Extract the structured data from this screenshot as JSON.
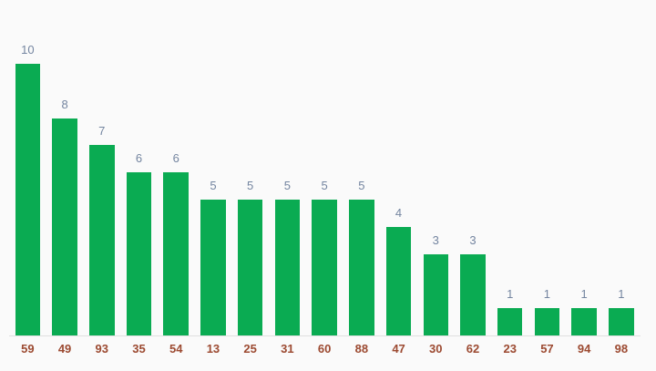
{
  "chart_data": {
    "type": "bar",
    "title": "",
    "xlabel": "",
    "ylabel": "",
    "categories": [
      "59",
      "49",
      "93",
      "35",
      "54",
      "13",
      "25",
      "31",
      "60",
      "88",
      "47",
      "30",
      "62",
      "23",
      "57",
      "94",
      "98"
    ],
    "values": [
      10,
      8,
      7,
      6,
      6,
      5,
      5,
      5,
      5,
      5,
      4,
      3,
      3,
      1,
      1,
      1,
      1
    ],
    "ylim": [
      0,
      10
    ],
    "grid": false,
    "legend_position": "none",
    "annotations": "value shown above each bar",
    "y_axis_visible": false
  },
  "style": {
    "background_color": "#fafafa",
    "bar_color": "#0aab52",
    "annotation_color": "#7485a0",
    "x_label_color": "#9c4a31",
    "axis_line_color": "#e0e0e0"
  }
}
